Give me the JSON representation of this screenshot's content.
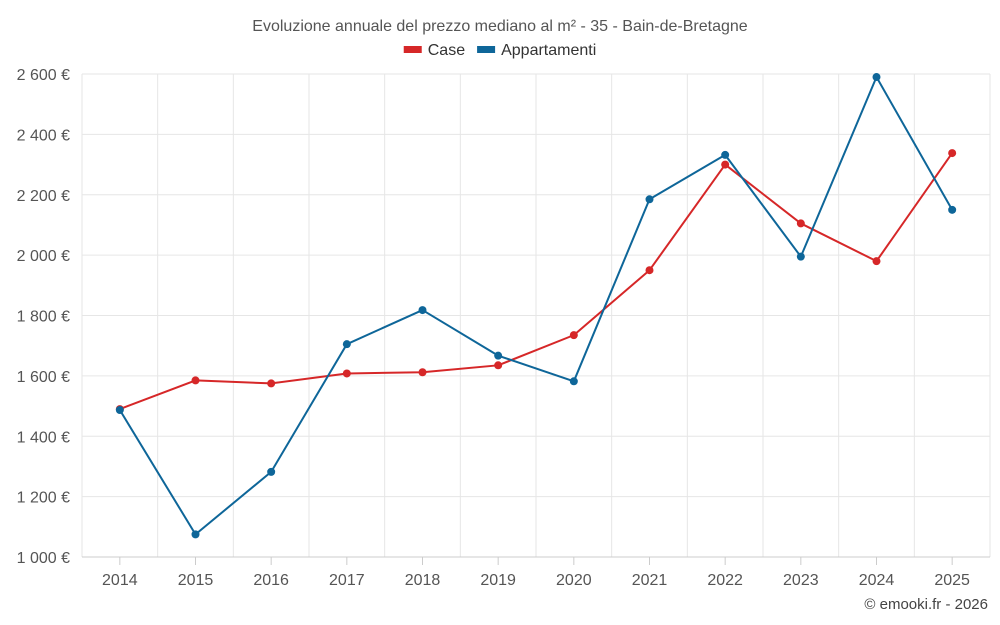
{
  "chart_data": {
    "type": "line",
    "title": "Evoluzione annuale del prezzo mediano al m² - 35 - Bain-de-Bretagne",
    "categories": [
      "2014",
      "2015",
      "2016",
      "2017",
      "2018",
      "2019",
      "2020",
      "2021",
      "2022",
      "2023",
      "2024",
      "2025"
    ],
    "series": [
      {
        "name": "Case",
        "color": "#d62728",
        "values": [
          1490,
          1585,
          1575,
          1608,
          1612,
          1635,
          1735,
          1950,
          2300,
          2105,
          1980,
          2338
        ]
      },
      {
        "name": "Appartamenti",
        "color": "#0e6699",
        "values": [
          1487,
          1075,
          1282,
          1705,
          1818,
          1667,
          1582,
          2185,
          2332,
          1995,
          2590,
          2150
        ]
      }
    ],
    "ylim": [
      1000,
      2600
    ],
    "yticks": [
      1000,
      1200,
      1400,
      1600,
      1800,
      2000,
      2200,
      2400,
      2600
    ],
    "ytick_labels": [
      "1 000 €",
      "1 200 €",
      "1 400 €",
      "1 600 €",
      "1 800 €",
      "2 000 €",
      "2 200 €",
      "2 400 €",
      "2 600 €"
    ],
    "grid": true,
    "legend_position": "top-center"
  },
  "credit": "© emooki.fr - 2026"
}
